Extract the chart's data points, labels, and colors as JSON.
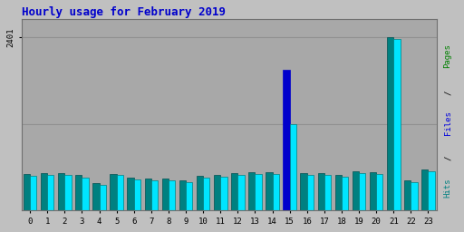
{
  "title": "Hourly usage for February 2019",
  "title_color": "#0000cc",
  "title_fontsize": 9,
  "hours": [
    0,
    1,
    2,
    3,
    4,
    5,
    6,
    7,
    8,
    9,
    10,
    11,
    12,
    13,
    14,
    15,
    16,
    17,
    18,
    19,
    20,
    21,
    22,
    23
  ],
  "hits": [
    480,
    490,
    495,
    460,
    360,
    490,
    430,
    420,
    415,
    390,
    455,
    465,
    490,
    505,
    505,
    1200,
    490,
    490,
    475,
    520,
    505,
    2380,
    400,
    540
  ],
  "pages": [
    510,
    520,
    525,
    490,
    385,
    510,
    455,
    445,
    438,
    415,
    480,
    490,
    515,
    530,
    530,
    1950,
    515,
    515,
    500,
    545,
    530,
    2401,
    425,
    565
  ],
  "bar_color_cyan": "#00e5ff",
  "bar_color_teal": "#008080",
  "bar_color_blue": "#0000cc",
  "bar_color_teal_edge": "#005050",
  "bar_color_cyan_edge": "#008080",
  "ytick_label": "2401",
  "ytick_value": 2401,
  "gridline_value": 1200,
  "bg_color": "#c0c0c0",
  "plot_bg_color": "#a8a8a8",
  "grid_color": "#909090",
  "bar_width": 0.38,
  "xlim": [
    -0.5,
    23.5
  ],
  "ylim": [
    0,
    2650
  ],
  "right_label_pages_color": "#008000",
  "right_label_files_color": "#0000dd",
  "right_label_hits_color": "#008080"
}
